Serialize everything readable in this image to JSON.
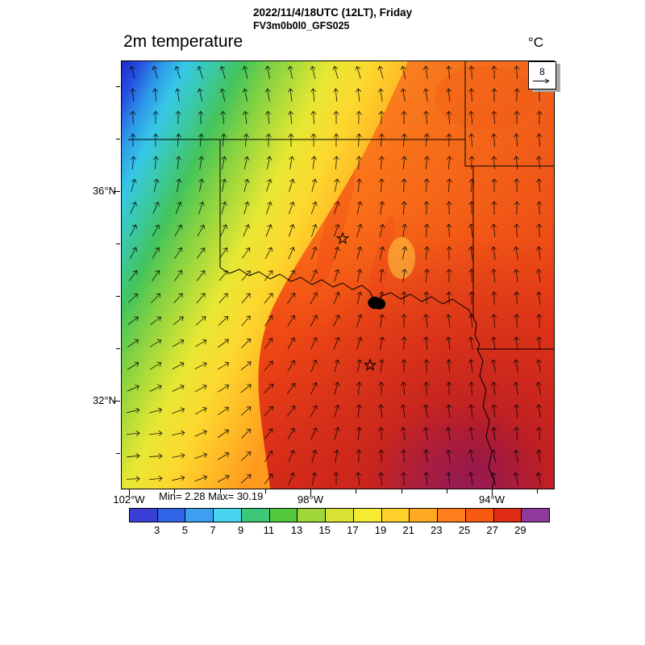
{
  "header": {
    "date_line": "2022/11/4/18UTC (12LT), Friday",
    "model_line": "FV3m0b0l0_GFS025"
  },
  "chart": {
    "title": "2m temperature",
    "units_label": "°C",
    "minmax_label": "Min= 2.28 Max= 30.19"
  },
  "chart_data": {
    "type": "heatmap",
    "title": "2m temperature",
    "units": "°C",
    "valid_time": "2022/11/4/18UTC (12LT), Friday",
    "model_run": "FV3m0b0l0_GFS025",
    "field_min": 2.28,
    "field_max": 30.19,
    "colorbar": {
      "tick_labels": [
        3,
        5,
        7,
        9,
        11,
        13,
        15,
        17,
        19,
        21,
        23,
        25,
        27,
        29
      ],
      "segment_colors": [
        "#3b3fd6",
        "#2f66e8",
        "#3e9ff0",
        "#46d4f0",
        "#3dc878",
        "#52c93f",
        "#9ed63a",
        "#d8e234",
        "#f5ec32",
        "#ffd02a",
        "#ffaa22",
        "#ff7f1c",
        "#f95a12",
        "#e02c12",
        "#8d3a9b"
      ],
      "range": [
        1,
        31
      ]
    },
    "x_axis": {
      "tick_labels": [
        "102°W",
        "98°W",
        "94°W"
      ]
    },
    "y_axis": {
      "tick_labels": [
        "36°N",
        "32°N"
      ]
    },
    "wind": {
      "reference_speed": 8,
      "grid_cols": 19,
      "grid_rows": 19
    },
    "overlays": [
      "state-borders",
      "river",
      "lake",
      "star-markers",
      "wind-vectors"
    ]
  }
}
